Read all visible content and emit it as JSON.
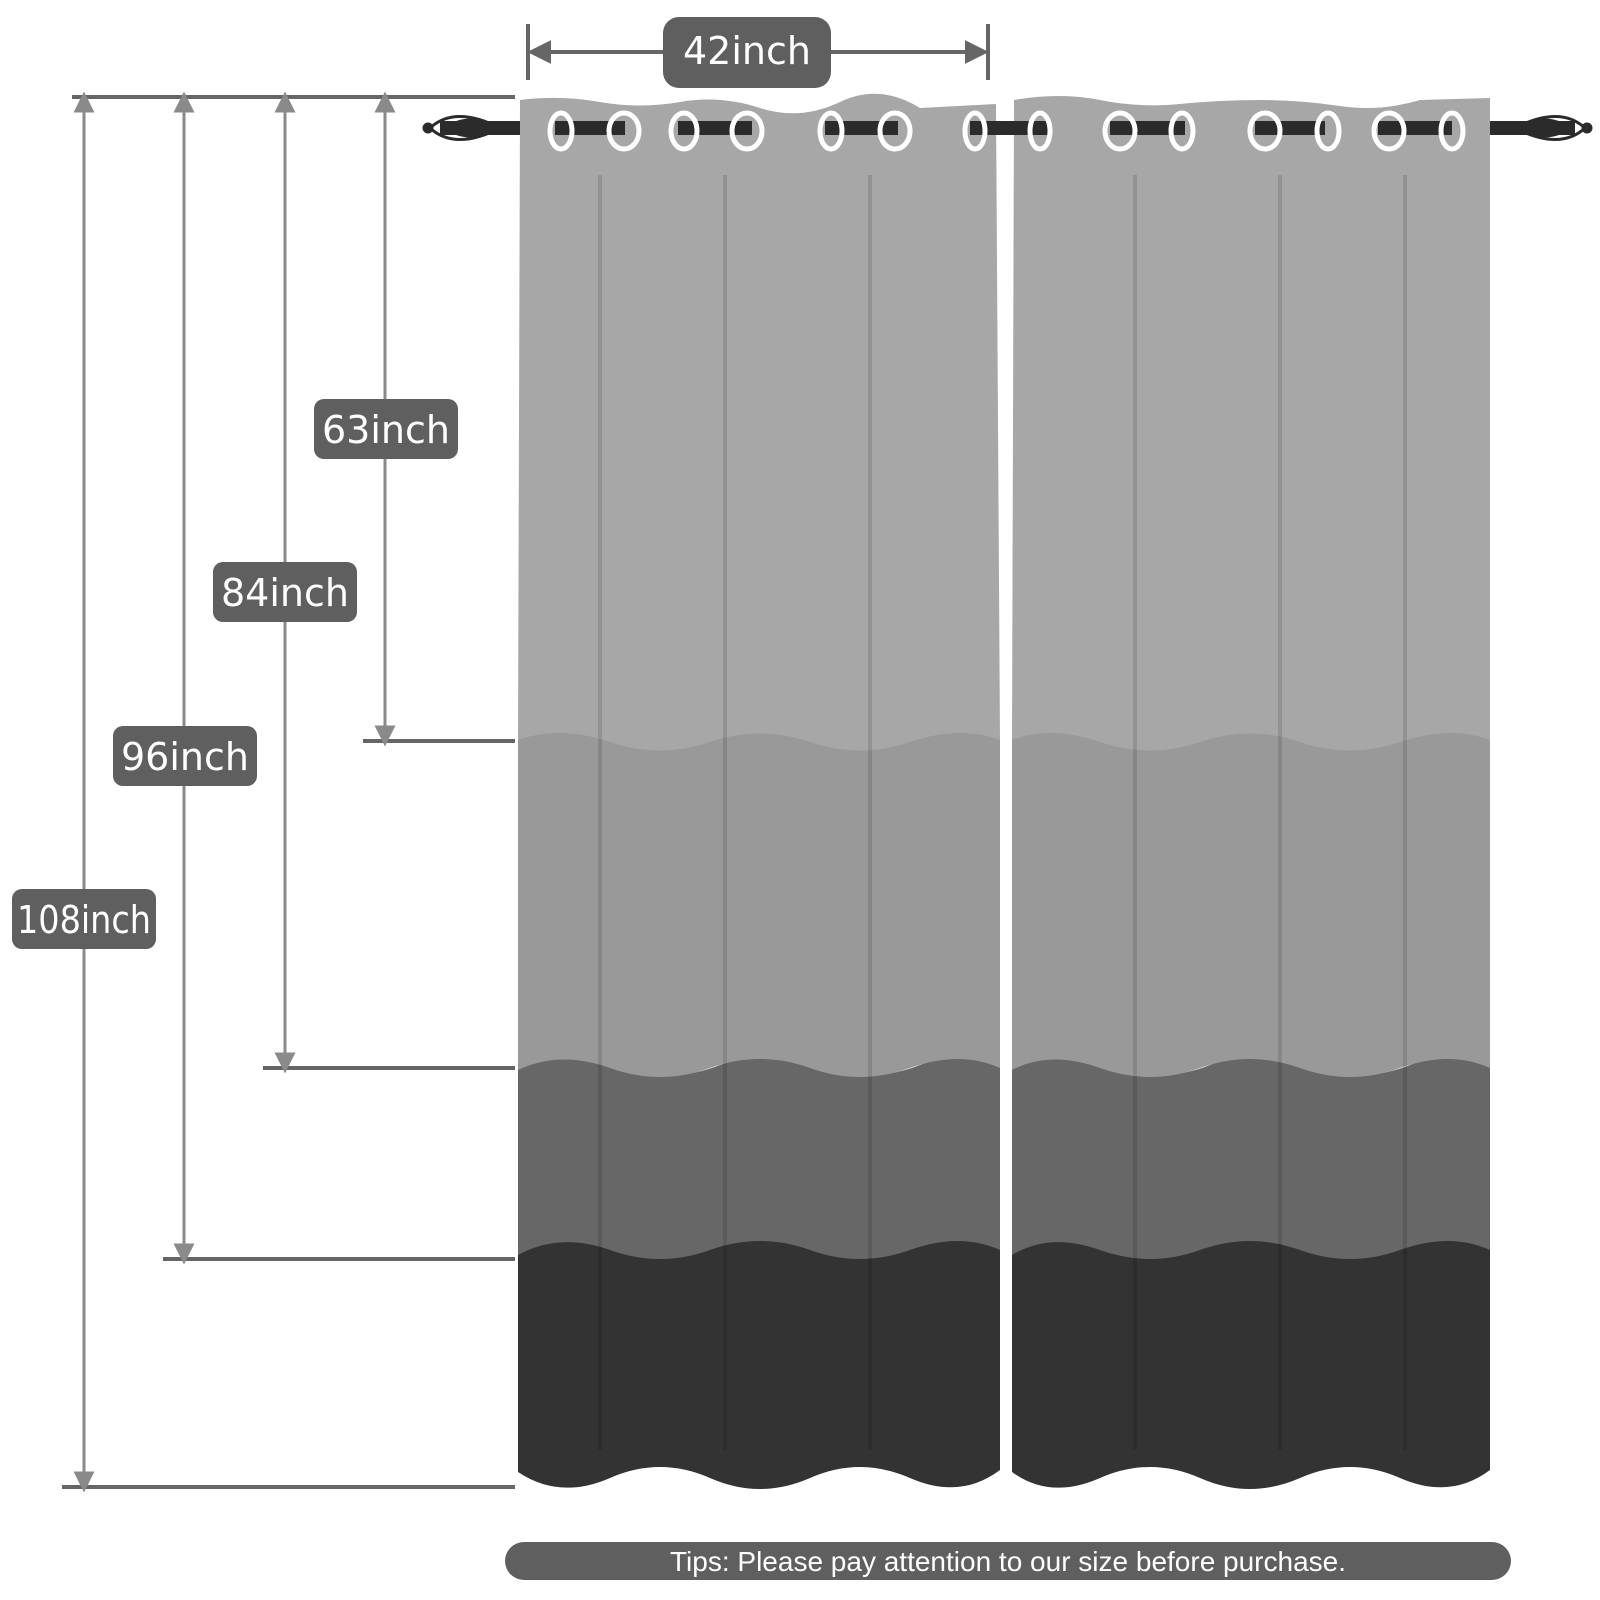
{
  "dimensions": {
    "width_label": "42inch",
    "lengths": [
      {
        "label": "63inch"
      },
      {
        "label": "84inch"
      },
      {
        "label": "96inch"
      },
      {
        "label": "108inch"
      }
    ]
  },
  "tips": "Tips: Please pay attention to our size before purchase.",
  "colors": {
    "stripe_1": "#a7a7a7",
    "stripe_2": "#999999",
    "stripe_3": "#676767",
    "stripe_4": "#333333",
    "label_bg": "#5f5f5f",
    "measure_line": "#8a8a8a",
    "rod": "#2b2b2b"
  },
  "icons": [
    "curtain-rod-finial-icon",
    "grommet-ring-icon",
    "dimension-arrow-icon"
  ]
}
